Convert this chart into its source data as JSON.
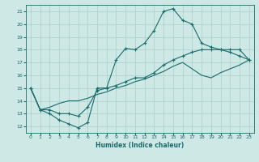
{
  "xlabel": "Humidex (Indice chaleur)",
  "bg_color": "#cde8e5",
  "grid_color": "#aacfcc",
  "line_color": "#1a6b6b",
  "xlim": [
    -0.5,
    23.5
  ],
  "ylim": [
    11.5,
    21.5
  ],
  "xticks": [
    0,
    1,
    2,
    3,
    4,
    5,
    6,
    7,
    8,
    9,
    10,
    11,
    12,
    13,
    14,
    15,
    16,
    17,
    18,
    19,
    20,
    21,
    22,
    23
  ],
  "yticks": [
    12,
    13,
    14,
    15,
    16,
    17,
    18,
    19,
    20,
    21
  ],
  "line1_x": [
    0,
    1,
    2,
    3,
    4,
    5,
    6,
    7,
    8,
    9,
    10,
    11,
    12,
    13,
    14,
    15,
    16,
    17,
    18,
    19,
    20,
    21,
    22,
    23
  ],
  "line1_y": [
    15.0,
    13.3,
    13.0,
    12.5,
    12.2,
    11.9,
    12.3,
    15.0,
    15.0,
    17.2,
    18.1,
    18.0,
    18.5,
    19.5,
    21.0,
    21.2,
    20.3,
    20.0,
    18.5,
    18.2,
    18.0,
    18.0,
    18.0,
    17.2
  ],
  "line2_x": [
    0,
    1,
    2,
    3,
    4,
    5,
    6,
    7,
    8,
    9,
    10,
    11,
    12,
    13,
    14,
    15,
    16,
    17,
    18,
    19,
    20,
    21,
    22,
    23
  ],
  "line2_y": [
    15.0,
    13.3,
    13.3,
    13.0,
    13.0,
    12.8,
    13.5,
    14.8,
    15.0,
    15.2,
    15.5,
    15.8,
    15.8,
    16.2,
    16.8,
    17.2,
    17.5,
    17.8,
    18.0,
    18.0,
    18.0,
    17.8,
    17.5,
    17.2
  ],
  "line3_x": [
    0,
    1,
    2,
    3,
    4,
    5,
    6,
    7,
    8,
    9,
    10,
    11,
    12,
    13,
    14,
    15,
    16,
    17,
    18,
    19,
    20,
    21,
    22,
    23
  ],
  "line3_y": [
    15.0,
    13.3,
    13.5,
    13.8,
    14.0,
    14.0,
    14.2,
    14.5,
    14.7,
    15.0,
    15.2,
    15.5,
    15.7,
    16.0,
    16.3,
    16.7,
    17.0,
    16.5,
    16.0,
    15.8,
    16.2,
    16.5,
    16.8,
    17.2
  ]
}
